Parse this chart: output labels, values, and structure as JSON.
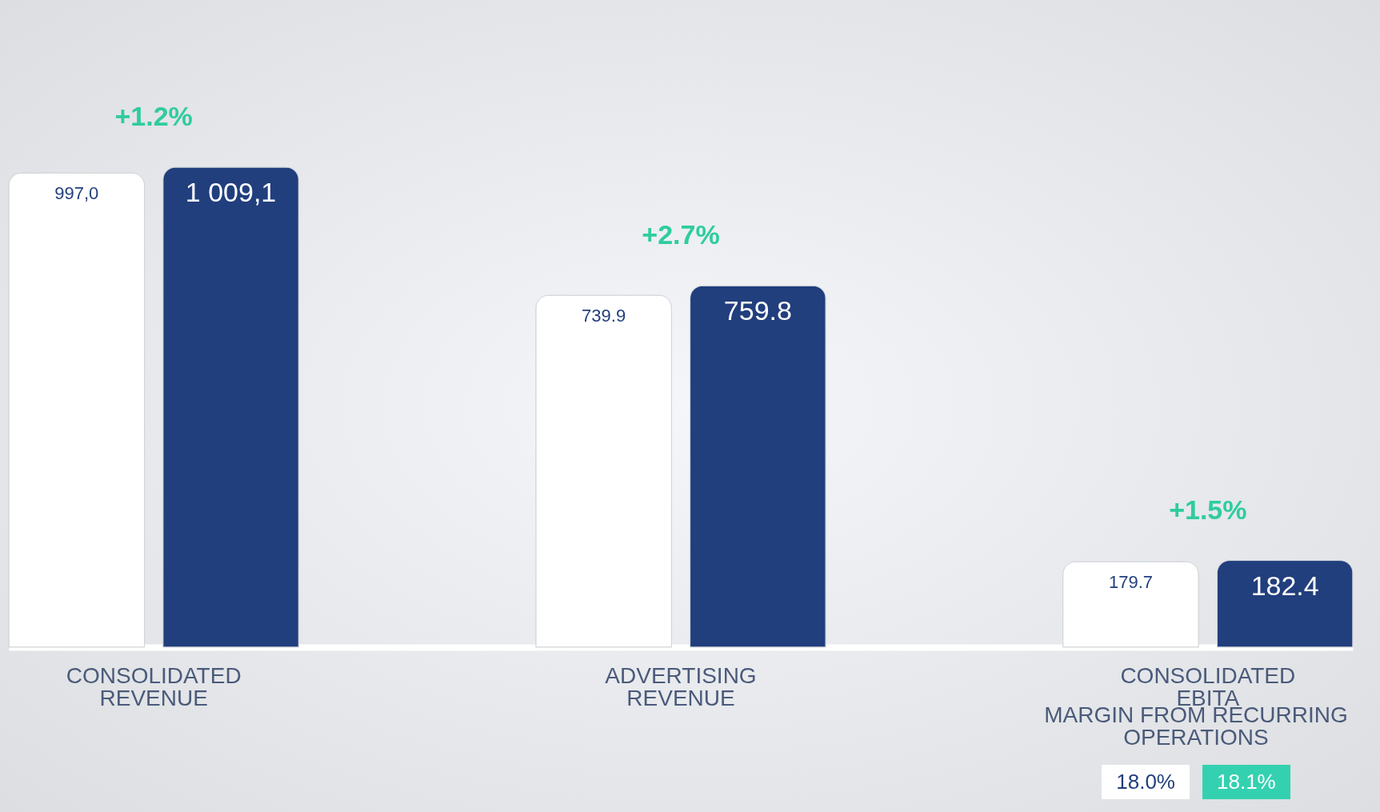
{
  "chart_data": {
    "type": "bar",
    "categories": [
      "CONSOLIDATED REVENUE",
      "ADVERTISING REVENUE",
      "CONSOLIDATED EBITA"
    ],
    "series": [
      {
        "color": "#ffffff",
        "values": [
          997.0,
          739.9,
          179.7
        ],
        "value_labels": [
          "997,0",
          "739.9",
          "179.7"
        ]
      },
      {
        "color": "#213e7d",
        "values": [
          1009.1,
          759.8,
          182.4
        ],
        "value_labels": [
          "1 009,1",
          "759.8",
          "182.4"
        ]
      }
    ],
    "annotations": [
      "+1.2%",
      "+2.7%",
      "+1.5%",
      "MARGIN FROM RECURRING OPERATIONS",
      "18.0%",
      "18.1%"
    ]
  }
}
